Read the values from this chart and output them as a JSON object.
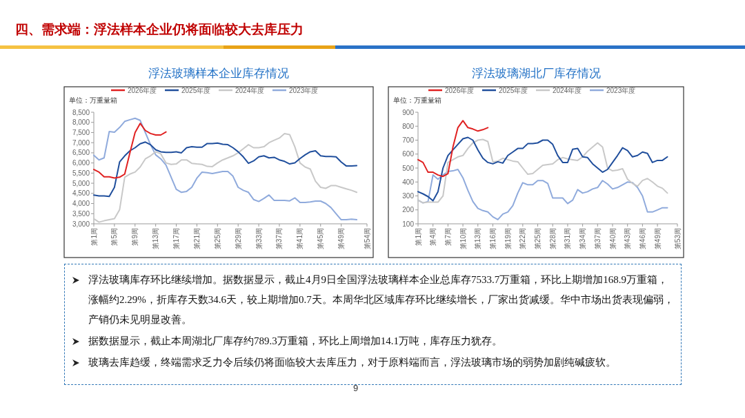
{
  "chart_data": [
    {
      "type": "line",
      "title": "浮法玻璃样本企业库存情况",
      "ylabel": "单位：万重量箱",
      "legend": "top",
      "grid": false,
      "categories": [
        "第1周",
        null,
        null,
        null,
        "第5周",
        null,
        null,
        null,
        "第9周",
        null,
        null,
        null,
        "第13周",
        null,
        null,
        null,
        "第17周",
        null,
        null,
        null,
        "第21周",
        null,
        null,
        null,
        "第25周",
        null,
        null,
        null,
        "第29周",
        null,
        null,
        null,
        "第33周",
        null,
        null,
        null,
        "第37周",
        null,
        null,
        null,
        "第41周",
        null,
        null,
        null,
        "第45周",
        null,
        null,
        null,
        "第49周",
        null,
        null,
        null,
        null,
        "第54周"
      ],
      "ylim": [
        3000,
        8500
      ],
      "yticks": [
        {
          "value": 3000,
          "label": "3,000"
        },
        {
          "value": 3500,
          "label": "3,500"
        },
        {
          "value": 4000,
          "label": "4,000"
        },
        {
          "value": 4500,
          "label": "4,500"
        },
        {
          "value": 5000,
          "label": "5,000"
        },
        {
          "value": 5500,
          "label": "5,500"
        },
        {
          "value": 6000,
          "label": "6,000"
        },
        {
          "value": 6500,
          "label": "6,500"
        },
        {
          "value": 7000,
          "label": "7,000"
        },
        {
          "value": 7500,
          "label": "7,500"
        },
        {
          "value": 8000,
          "label": "8,000"
        },
        {
          "value": 8500,
          "label": "8,500"
        }
      ],
      "series": [
        {
          "name": "2026年度",
          "color": "#e02020",
          "values": [
            5680,
            5550,
            5320,
            5320,
            5260,
            5300,
            5450,
            6500,
            7500,
            7950,
            7600,
            7450,
            7380,
            7380,
            7530,
            null,
            null,
            null,
            null,
            null,
            null,
            null,
            null,
            null,
            null,
            null,
            null,
            null,
            null,
            null,
            null,
            null,
            null,
            null,
            null,
            null,
            null,
            null,
            null,
            null,
            null,
            null,
            null,
            null,
            null,
            null,
            null,
            null,
            null,
            null,
            null,
            null,
            null,
            null
          ]
        },
        {
          "name": "2025年度",
          "color": "#1f4e9c",
          "values": [
            4420,
            4370,
            4380,
            4350,
            4800,
            6050,
            6350,
            6600,
            6750,
            6950,
            7030,
            6900,
            6650,
            6550,
            6520,
            6520,
            6550,
            6500,
            6750,
            6800,
            6780,
            6780,
            6960,
            6960,
            6980,
            6920,
            6900,
            6750,
            6550,
            6300,
            5980,
            6100,
            6300,
            6350,
            6250,
            6280,
            6150,
            6080,
            5950,
            6000,
            6220,
            6400,
            6550,
            6600,
            6350,
            6320,
            6320,
            6300,
            6050,
            5850,
            5850,
            5870,
            null,
            null
          ]
        },
        {
          "name": "2024年度",
          "color": "#c8c8c8",
          "values": [
            3250,
            3080,
            3150,
            3200,
            3250,
            3700,
            5300,
            5450,
            5550,
            5800,
            6200,
            6350,
            6550,
            6450,
            6000,
            5930,
            5950,
            6150,
            6150,
            5980,
            5950,
            5930,
            5830,
            5820,
            6000,
            6150,
            6250,
            6350,
            6500,
            6700,
            6900,
            6750,
            6750,
            6800,
            7000,
            7120,
            7230,
            7450,
            7400,
            6800,
            6000,
            5800,
            5700,
            5100,
            4800,
            4750,
            4880,
            4880,
            4800,
            4720,
            4650,
            4550,
            null,
            null
          ]
        },
        {
          "name": "2023年度",
          "color": "#8faadc",
          "values": [
            6380,
            6150,
            6250,
            7550,
            7520,
            7750,
            8050,
            8130,
            8200,
            8100,
            7500,
            6900,
            6400,
            6200,
            5900,
            5300,
            4700,
            4550,
            4600,
            4800,
            5250,
            5550,
            5520,
            5480,
            5530,
            5580,
            5580,
            5350,
            4800,
            4650,
            4550,
            4200,
            4100,
            4250,
            4420,
            4150,
            4150,
            4150,
            4130,
            4280,
            4050,
            4050,
            4080,
            4120,
            4120,
            4000,
            3800,
            3500,
            3200,
            3200,
            3230,
            3200,
            null,
            null
          ]
        }
      ]
    },
    {
      "type": "line",
      "title": "浮法玻璃湖北厂库存情况",
      "ylabel": "单位：万重量箱",
      "legend": "top",
      "grid": false,
      "categories": [
        "第1周",
        null,
        null,
        "第4周",
        null,
        null,
        "第7周",
        null,
        null,
        "第10周",
        null,
        null,
        "第13周",
        null,
        null,
        "第16周",
        null,
        null,
        "第19周",
        null,
        null,
        "第22周",
        null,
        null,
        "第25周",
        null,
        null,
        "第28周",
        null,
        null,
        "第31周",
        null,
        null,
        "第34周",
        null,
        null,
        "第37周",
        null,
        null,
        "第40周",
        null,
        null,
        "第43周",
        null,
        null,
        "第46周",
        null,
        null,
        "第49周",
        null,
        null,
        null,
        "第53周"
      ],
      "ylim": [
        100,
        900
      ],
      "yticks": [
        100,
        200,
        300,
        400,
        500,
        600,
        700,
        800,
        900
      ],
      "series": [
        {
          "name": "2026年度",
          "color": "#e02020",
          "values": [
            560,
            540,
            470,
            470,
            450,
            440,
            460,
            650,
            790,
            840,
            790,
            780,
            765,
            775,
            790,
            null,
            null,
            null,
            null,
            null,
            null,
            null,
            null,
            null,
            null,
            null,
            null,
            null,
            null,
            null,
            null,
            null,
            null,
            null,
            null,
            null,
            null,
            null,
            null,
            null,
            null,
            null,
            null,
            null,
            null,
            null,
            null,
            null,
            null,
            null,
            null,
            null,
            null
          ]
        },
        {
          "name": "2025年度",
          "color": "#1f4e9c",
          "values": [
            330,
            315,
            295,
            265,
            330,
            500,
            590,
            630,
            670,
            710,
            720,
            700,
            630,
            570,
            540,
            530,
            545,
            535,
            590,
            615,
            640,
            640,
            675,
            675,
            680,
            700,
            700,
            670,
            590,
            540,
            540,
            635,
            640,
            580,
            575,
            530,
            500,
            470,
            490,
            540,
            590,
            645,
            625,
            580,
            590,
            615,
            605,
            540,
            555,
            555,
            580,
            null,
            null
          ]
        },
        {
          "name": "2024年度",
          "color": "#c8c8c8",
          "values": [
            270,
            250,
            255,
            255,
            255,
            300,
            540,
            560,
            580,
            590,
            640,
            680,
            700,
            705,
            690,
            545,
            550,
            570,
            560,
            550,
            545,
            500,
            455,
            460,
            490,
            520,
            525,
            530,
            560,
            575,
            565,
            560,
            555,
            580,
            620,
            650,
            680,
            650,
            500,
            480,
            485,
            495,
            420,
            390,
            370,
            410,
            425,
            400,
            370,
            355,
            320,
            null,
            null
          ]
        },
        {
          "name": "2023年度",
          "color": "#8faadc",
          "values": [
            270,
            250,
            260,
            450,
            420,
            450,
            475,
            480,
            490,
            430,
            340,
            260,
            210,
            195,
            185,
            150,
            130,
            170,
            185,
            230,
            320,
            395,
            380,
            380,
            410,
            410,
            390,
            285,
            285,
            285,
            245,
            270,
            345,
            320,
            330,
            350,
            360,
            410,
            385,
            350,
            360,
            380,
            400,
            395,
            360,
            300,
            185,
            185,
            200,
            215,
            215,
            null,
            null
          ]
        }
      ]
    },
    {
      "type": "other",
      "title": "四、需求端：浮法样本企业仍将面临较大去库压力",
      "annotations": [
        "浮法玻璃库存环比继续增加。据数据显示，截止4月9日全国浮法玻璃样本企业总库存7533.7万重箱，环比上期增加168.9万重箱，涨幅约2.29%，折库存天数34.6天，较上期增加0.7天。本周华北区域库存环比继续增长，厂家出货减缓。华中市场出货表现偏弱，产销仍未见明显改善。",
        "据数据显示，截止本周湖北厂库存约789.3万重箱，环比上周增加14.1万吨，库存压力犹存。",
        "玻璃去库趋缓，终端需求乏力令后续仍将面临较大去库压力，对于原料端而言，浮法玻璃市场的弱势加剧纯碱疲软。",
        "9"
      ]
    }
  ]
}
